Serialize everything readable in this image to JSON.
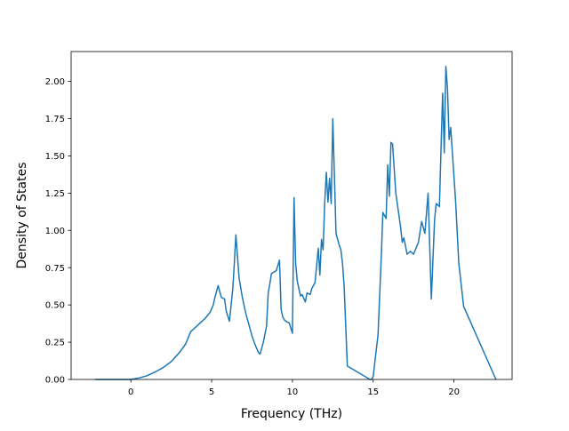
{
  "chart_data": {
    "type": "line",
    "title": "",
    "xlabel": "Frequency (THz)",
    "ylabel": "Density of States",
    "xlim": [
      -3.7,
      23.6
    ],
    "ylim": [
      0.0,
      2.2
    ],
    "xticks": [
      0,
      5,
      10,
      15,
      20
    ],
    "yticks": [
      0.0,
      0.25,
      0.5,
      0.75,
      1.0,
      1.25,
      1.5,
      1.75,
      2.0
    ],
    "ytick_labels": [
      "0.00",
      "0.25",
      "0.50",
      "0.75",
      "1.00",
      "1.25",
      "1.50",
      "1.75",
      "2.00"
    ],
    "grid": false,
    "series": [
      {
        "color": "#1f77b4",
        "x": [
          -2.2,
          0.0,
          0.5,
          1.0,
          1.5,
          2.0,
          2.5,
          3.0,
          3.4,
          3.7,
          3.9,
          4.2,
          4.6,
          4.9,
          5.1,
          5.2,
          5.4,
          5.6,
          5.8,
          5.9,
          6.1,
          6.3,
          6.35,
          6.5,
          6.7,
          6.9,
          7.1,
          7.3,
          7.5,
          7.7,
          7.9,
          8.0,
          8.2,
          8.4,
          8.5,
          8.6,
          8.7,
          9.0,
          9.2,
          9.3,
          9.4,
          9.5,
          9.6,
          9.8,
          10.0,
          10.1,
          10.2,
          10.3,
          10.5,
          10.6,
          10.8,
          10.9,
          11.1,
          11.2,
          11.4,
          11.6,
          11.7,
          11.8,
          11.9,
          12.0,
          12.1,
          12.2,
          12.3,
          12.4,
          12.5,
          12.7,
          12.9,
          13.0,
          13.1,
          13.2,
          13.4,
          14.8,
          14.9,
          15.0,
          15.3,
          15.5,
          15.6,
          15.8,
          15.9,
          16.0,
          16.1,
          16.2,
          16.4,
          16.7,
          16.8,
          16.9,
          17.1,
          17.3,
          17.5,
          17.8,
          18.0,
          18.2,
          18.4,
          18.6,
          18.8,
          18.9,
          19.1,
          19.2,
          19.3,
          19.4,
          19.5,
          19.6,
          19.7,
          19.8,
          20.1,
          20.3,
          20.6,
          22.6
        ],
        "y": [
          0.0,
          0.0,
          0.01,
          0.025,
          0.05,
          0.08,
          0.12,
          0.18,
          0.24,
          0.32,
          0.34,
          0.37,
          0.41,
          0.45,
          0.5,
          0.55,
          0.63,
          0.55,
          0.54,
          0.46,
          0.39,
          0.6,
          0.68,
          0.97,
          0.68,
          0.55,
          0.45,
          0.37,
          0.29,
          0.23,
          0.18,
          0.17,
          0.25,
          0.36,
          0.58,
          0.64,
          0.71,
          0.73,
          0.8,
          0.47,
          0.42,
          0.4,
          0.39,
          0.38,
          0.31,
          1.22,
          0.78,
          0.66,
          0.56,
          0.57,
          0.52,
          0.58,
          0.57,
          0.61,
          0.65,
          0.88,
          0.7,
          0.94,
          0.87,
          1.19,
          1.39,
          1.19,
          1.35,
          1.18,
          1.75,
          0.98,
          0.9,
          0.87,
          0.78,
          0.63,
          0.09,
          0.0,
          0.0,
          0.02,
          0.3,
          0.82,
          1.12,
          1.08,
          1.44,
          1.23,
          1.59,
          1.58,
          1.25,
          1.02,
          0.92,
          0.95,
          0.84,
          0.86,
          0.84,
          0.92,
          1.06,
          0.98,
          1.25,
          0.54,
          1.07,
          1.18,
          1.16,
          1.55,
          1.92,
          1.52,
          2.1,
          1.95,
          1.61,
          1.69,
          1.2,
          0.78,
          0.49,
          0.0
        ]
      }
    ]
  }
}
